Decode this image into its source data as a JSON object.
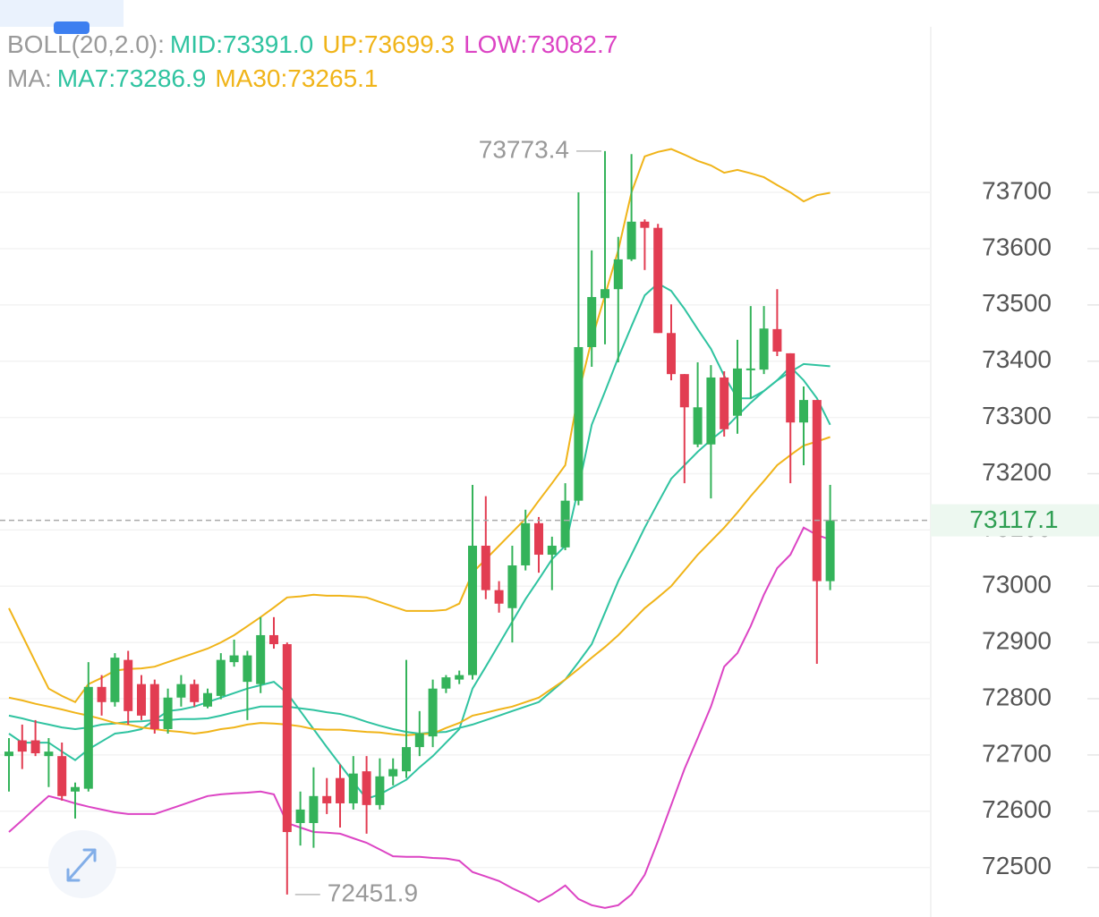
{
  "chart_data": {
    "type": "candlestick",
    "up_color": "#34b35a",
    "down_color": "#e23d52",
    "open": [
      72698,
      72726,
      72726,
      72698,
      72698,
      72635,
      72640,
      72821,
      72794,
      72869,
      72826,
      72826,
      72746,
      72802,
      72826,
      72786,
      72805,
      72865,
      72830,
      72826,
      72913,
      72897,
      72579,
      72579,
      72627,
      72659,
      72614,
      72671,
      72611,
      72662,
      72671,
      72714,
      72733,
      72818,
      72834,
      72842,
      73072,
      72993,
      72961,
      73037,
      73112,
      73056,
      73069,
      73152,
      73425,
      73512,
      73528,
      73581,
      73648,
      73637,
      73450,
      73377,
      73252,
      73252,
      73371,
      73303,
      73385,
      73385,
      73457,
      73414,
      73291,
      73331,
      73009
    ],
    "high": [
      72730,
      72754,
      72762,
      72730,
      72722,
      72651,
      72865,
      72842,
      72881,
      72885,
      72842,
      72834,
      72818,
      72842,
      72834,
      72818,
      72881,
      72905,
      72885,
      72945,
      72945,
      72900,
      72635,
      72678,
      72659,
      72683,
      72698,
      72698,
      72694,
      72694,
      72869,
      72778,
      72834,
      72842,
      72850,
      73180,
      73160,
      73009,
      73072,
      73136,
      73123,
      73088,
      73183,
      73700,
      73597,
      73773.4,
      73621,
      73768,
      73652,
      73644,
      73501,
      73377,
      73398,
      73393,
      73382,
      73438,
      73498,
      73498,
      73528,
      73414,
      73355,
      73331,
      73180
    ],
    "low": [
      72635,
      72675,
      72698,
      72643,
      72619,
      72587,
      72635,
      72770,
      72786,
      72754,
      72762,
      72738,
      72738,
      72786,
      72786,
      72783,
      72799,
      72857,
      72762,
      72810,
      72889,
      72451.9,
      72539,
      72535,
      72595,
      72571,
      72603,
      72560,
      72603,
      72646,
      72659,
      72698,
      72714,
      72810,
      72826,
      72834,
      72977,
      72953,
      72900,
      73028,
      73024,
      72993,
      73064,
      73144,
      73390,
      73430,
      73398,
      73578,
      73562,
      73450,
      73366,
      73183,
      73247,
      73156,
      73266,
      73271,
      73334,
      73377,
      73409,
      73183,
      73215,
      72862,
      72993
    ],
    "close": [
      72706,
      72706,
      72703,
      72706,
      72627,
      72643,
      72821,
      72794,
      72873,
      72778,
      72770,
      72746,
      72802,
      72826,
      72794,
      72810,
      72869,
      72877,
      72877,
      72913,
      72897,
      72563,
      72603,
      72627,
      72614,
      72614,
      72667,
      72611,
      72662,
      72675,
      72714,
      72738,
      72818,
      72838,
      72842,
      73072,
      72993,
      72969,
      73037,
      73112,
      73056,
      73072,
      73152,
      73425,
      73514,
      73528,
      73581,
      73648,
      73637,
      73450,
      73377,
      73318,
      73318,
      73371,
      73279,
      73387,
      73387,
      73458,
      73417,
      73291,
      73331,
      73009,
      73117.1
    ],
    "indicators": [
      {
        "title": "BOLL(20,2.0):",
        "series": [
          {
            "name": "MID:73391.0",
            "color": "#2fc3a0",
            "values": [
              72770,
              72765,
              72759,
              72754,
              72749,
              72746,
              72749,
              72754,
              72756,
              72759,
              72760,
              72762,
              72762,
              72764,
              72764,
              72765,
              72770,
              72776,
              72781,
              72786,
              72786,
              72786,
              72783,
              72780,
              72776,
              72773,
              72767,
              72759,
              72752,
              72746,
              72741,
              72738,
              72740,
              72741,
              72748,
              72754,
              72762,
              72770,
              72778,
              72786,
              72794,
              72814,
              72834,
              72865,
              72897,
              72953,
              73009,
              73056,
              73104,
              73148,
              73191,
              73215,
              73239,
              73260,
              73279,
              73303,
              73326,
              73347,
              73366,
              73381,
              73395,
              73393,
              73391.0
            ]
          },
          {
            "name": "UP:73699.3",
            "color": "#f0b419",
            "values": [
              72961,
              72913,
              72865,
              72818,
              72805,
              72794,
              72826,
              72837,
              72850,
              72853,
              72854,
              72857,
              72865,
              72873,
              72881,
              72889,
              72900,
              72913,
              72929,
              72945,
              72962,
              72980,
              72982,
              72985,
              72983,
              72983,
              72982,
              72980,
              72972,
              72964,
              72956,
              72956,
              72956,
              72958,
              72969,
              73024,
              73048,
              73072,
              73096,
              73120,
              73152,
              73183,
              73215,
              73342,
              73438,
              73517,
              73597,
              73700,
              73764,
              73772,
              73777,
              73767,
              73756,
              73748,
              73735,
              73740,
              73734,
              73727,
              73713,
              73700,
              73684,
              73695,
              73699.3
            ]
          },
          {
            "name": "LOW:73082.7",
            "color": "#dc44c4",
            "values": [
              72563,
              72584,
              72606,
              72627,
              72621,
              72614,
              72608,
              72603,
              72598,
              72595,
              72595,
              72595,
              72603,
              72611,
              72619,
              72627,
              72630,
              72632,
              72633,
              72635,
              72630,
              72579,
              72571,
              72563,
              72562,
              72560,
              72552,
              72544,
              72532,
              72520,
              72519,
              72519,
              72517,
              72516,
              72512,
              72492,
              72484,
              72476,
              72463,
              72452,
              72439,
              72452,
              72468,
              72444,
              72433,
              72428,
              72433,
              72452,
              72487,
              72547,
              72611,
              72675,
              72730,
              72786,
              72857,
              72881,
              72929,
              72985,
              73032,
              73056,
              73104,
              73091,
              73082.7
            ]
          }
        ]
      },
      {
        "title": "MA:",
        "series": [
          {
            "name": "MA7:73286.9",
            "color": "#2fc3a0",
            "values": [
              72738,
              72722,
              72722,
              72722,
              72706,
              72691,
              72710,
              72724,
              72738,
              72741,
              72746,
              72762,
              72778,
              72781,
              72786,
              72794,
              72802,
              72810,
              72818,
              72824,
              72830,
              72810,
              72778,
              72746,
              72714,
              72683,
              72652,
              72622,
              72630,
              72643,
              72656,
              72678,
              72698,
              72722,
              72746,
              72818,
              72857,
              72897,
              72937,
              72977,
              73012,
              73048,
              73072,
              73175,
              73287,
              73346,
              73406,
              73462,
              73517,
              73538,
              73525,
              73493,
              73457,
              73422,
              73374,
              73334,
              73334,
              73347,
              73366,
              73390,
              73366,
              73334,
              73286.9
            ]
          },
          {
            "name": "MA30:73265.1",
            "color": "#f0b419",
            "values": [
              72802,
              72797,
              72791,
              72786,
              72781,
              72775,
              72770,
              72764,
              72757,
              72754,
              72749,
              72746,
              72743,
              72741,
              72738,
              72741,
              72746,
              72749,
              72754,
              72757,
              72756,
              72754,
              72751,
              72746,
              72745,
              72745,
              72743,
              72741,
              72740,
              72737,
              72735,
              72737,
              72738,
              72748,
              72757,
              72770,
              72775,
              72781,
              72786,
              72794,
              72802,
              72818,
              72834,
              72853,
              72873,
              72892,
              72913,
              72937,
              72961,
              72980,
              73000,
              73028,
              73056,
              73080,
              73104,
              73131,
              73160,
              73187,
              73215,
              73233,
              73250,
              73257,
              73265.1
            ]
          }
        ]
      }
    ],
    "high_mark": 73773.4,
    "low_mark": 72451.9,
    "last_price": 73117.1,
    "ylim": [
      72412,
      74042
    ],
    "yticks": [
      72500,
      72600,
      72700,
      72800,
      72900,
      73000,
      73100,
      73200,
      73300,
      73400,
      73500,
      73600,
      73700
    ],
    "grid": true
  }
}
